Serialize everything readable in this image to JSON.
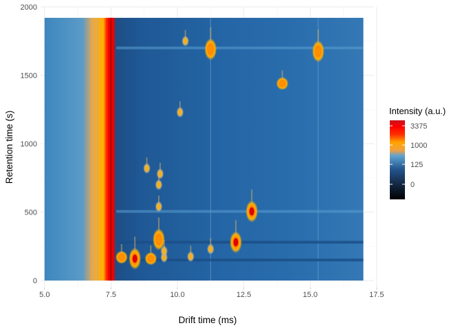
{
  "chart_data": {
    "type": "heatmap",
    "title": "",
    "xlabel": "Drift time (ms)",
    "ylabel": "Retention time (s)",
    "xlim": [
      4.85,
      17.4
    ],
    "ylim": [
      -50,
      2000
    ],
    "x_ticks": [
      5.0,
      7.5,
      10.0,
      12.5,
      15.0,
      17.5
    ],
    "x_tick_labels": [
      "5.0",
      "7.5",
      "10.0",
      "12.5",
      "15.0",
      "17.5"
    ],
    "y_ticks": [
      0,
      500,
      1000,
      1500,
      2000
    ],
    "y_tick_labels": [
      "0",
      "500",
      "1000",
      "1500",
      "2000"
    ],
    "data_extent": {
      "x": [
        5.0,
        17.0
      ],
      "y": [
        0,
        1920
      ]
    },
    "grid": true,
    "legend": {
      "title": "Intensity (a.u.)",
      "position": "right",
      "breaks": [
        "3375",
        "1000",
        "125",
        "0"
      ],
      "colors": [
        "#000000",
        "#1f3a6b",
        "#2f6fb0",
        "#5ea3d0",
        "#ffa500",
        "#ff4500",
        "#ff0000",
        "#c8141e"
      ]
    },
    "reactant_ion_peak": {
      "x": 7.5,
      "y_range": [
        0,
        1920
      ],
      "intensity": 3375
    },
    "horizontal_lines": [
      {
        "y": 150,
        "intensity": 0
      },
      {
        "y": 280,
        "intensity": 0
      },
      {
        "y": 505,
        "intensity": 125
      },
      {
        "y": 1700,
        "intensity": 125
      }
    ],
    "peaks": [
      {
        "x": 11.25,
        "y": 1690,
        "intensity": 1000
      },
      {
        "x": 15.3,
        "y": 1675,
        "intensity": 1000
      },
      {
        "x": 13.95,
        "y": 1440,
        "intensity": 600
      },
      {
        "x": 12.8,
        "y": 505,
        "intensity": 3375
      },
      {
        "x": 12.2,
        "y": 280,
        "intensity": 2000
      },
      {
        "x": 9.3,
        "y": 300,
        "intensity": 1500
      },
      {
        "x": 8.4,
        "y": 160,
        "intensity": 3375
      },
      {
        "x": 8.85,
        "y": 820,
        "intensity": 400
      },
      {
        "x": 9.3,
        "y": 540,
        "intensity": 300
      },
      {
        "x": 9.3,
        "y": 700,
        "intensity": 250
      },
      {
        "x": 9.35,
        "y": 780,
        "intensity": 200
      },
      {
        "x": 7.9,
        "y": 170,
        "intensity": 600
      },
      {
        "x": 9.0,
        "y": 160,
        "intensity": 700
      },
      {
        "x": 9.5,
        "y": 170,
        "intensity": 500
      },
      {
        "x": 10.5,
        "y": 175,
        "intensity": 400
      },
      {
        "x": 11.25,
        "y": 230,
        "intensity": 300
      },
      {
        "x": 9.5,
        "y": 215,
        "intensity": 300
      },
      {
        "x": 10.1,
        "y": 1230,
        "intensity": 150
      },
      {
        "x": 10.3,
        "y": 1750,
        "intensity": 150
      }
    ]
  }
}
